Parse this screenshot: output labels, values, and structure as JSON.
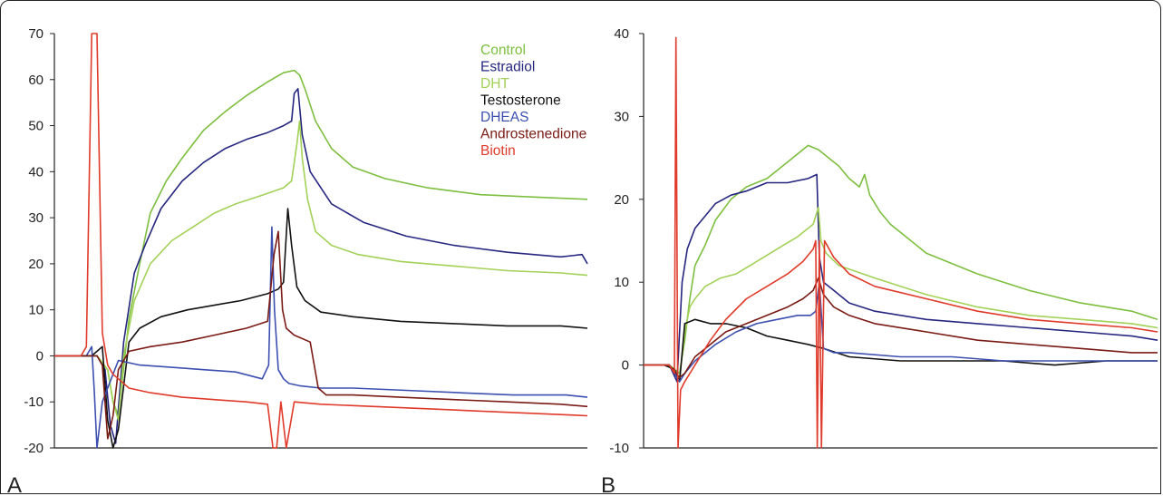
{
  "chart_data": [
    {
      "type": "line",
      "panel_label": "A",
      "ylim": [
        -20,
        70
      ],
      "yticks": [
        70,
        60,
        50,
        40,
        30,
        20,
        10,
        0,
        -10,
        -20
      ],
      "xlim": [
        0,
        100
      ],
      "grid": false,
      "legend_placement": "top-right",
      "legend": [
        "Control",
        "Estradiol",
        "DHT",
        "Testosterone",
        "DHEAS",
        "Androstenedione",
        "Biotin"
      ],
      "series": [
        {
          "name": "Control",
          "color": "#7dbe3f",
          "x": [
            0,
            8,
            10,
            11,
            12,
            14,
            16,
            18,
            21,
            24,
            28,
            32,
            36,
            40,
            43,
            45,
            46,
            47,
            49,
            52,
            56,
            62,
            70,
            80,
            90,
            100
          ],
          "y": [
            0,
            0,
            -3,
            -10,
            -13,
            8,
            20,
            31,
            38,
            43,
            49,
            53,
            56.5,
            59.5,
            61.5,
            62,
            61,
            58,
            51,
            45,
            41,
            38.5,
            36.5,
            35,
            34.5,
            34
          ]
        },
        {
          "name": "Estradiol",
          "color": "#262680",
          "x": [
            0,
            8,
            9.5,
            10.5,
            11.5,
            13,
            15,
            17,
            20,
            24,
            28,
            32,
            36,
            40,
            43,
            44.5,
            45,
            45.7,
            46.5,
            48,
            52,
            58,
            66,
            75,
            85,
            95,
            99,
            100
          ],
          "y": [
            0,
            0,
            -3,
            -15,
            -19,
            3,
            18,
            24,
            32,
            38,
            42,
            45,
            47,
            48.5,
            50,
            51,
            57,
            58,
            48,
            40,
            33,
            29,
            26,
            24,
            22.5,
            21.5,
            22,
            20
          ]
        },
        {
          "name": "DHT",
          "color": "#a3d157",
          "x": [
            0,
            8,
            10,
            11,
            12,
            13,
            15,
            18,
            22,
            26,
            30,
            34,
            38,
            43,
            44.5,
            45.5,
            46,
            46.5,
            47.5,
            49,
            52,
            57,
            65,
            75,
            85,
            95,
            100
          ],
          "y": [
            0,
            0,
            -3,
            -10,
            -14,
            0,
            12,
            20,
            25,
            28,
            31,
            33,
            34.5,
            36.5,
            38,
            46,
            51,
            43,
            34,
            27,
            24,
            22,
            20.5,
            19.5,
            18.5,
            18,
            17.5
          ]
        },
        {
          "name": "Testosterone",
          "color": "#111111",
          "x": [
            0,
            7,
            9,
            10,
            11,
            12,
            14,
            16,
            20,
            25,
            30,
            35,
            40,
            42,
            43,
            43.8,
            44.5,
            45.5,
            47,
            50,
            56,
            65,
            75,
            85,
            95,
            100
          ],
          "y": [
            0,
            0,
            2,
            -14,
            -20,
            -16,
            3,
            6,
            8.5,
            10,
            11,
            12,
            13.5,
            14.5,
            16,
            32,
            24,
            15,
            12,
            9.5,
            8.5,
            7.5,
            7,
            6.5,
            6.5,
            6
          ]
        },
        {
          "name": "DHEAS",
          "color": "#3c4fb0",
          "x": [
            0,
            6,
            7,
            7.5,
            8,
            9,
            12,
            16,
            22,
            28,
            34,
            39,
            40.2,
            40.8,
            41.3,
            42,
            43,
            44,
            46,
            50,
            56,
            66,
            76,
            86,
            96,
            100
          ],
          "y": [
            0,
            0,
            2,
            -8,
            -20,
            -10,
            -1,
            -2,
            -2.5,
            -3,
            -3.5,
            -5,
            -2,
            28,
            10,
            -3,
            -5,
            -6,
            -6.5,
            -7,
            -7,
            -7.5,
            -8,
            -8.5,
            -8.5,
            -9
          ]
        },
        {
          "name": "Androstenedione",
          "color": "#7a1a14",
          "x": [
            0,
            8,
            9,
            10,
            11,
            12,
            14,
            18,
            24,
            30,
            36,
            40,
            41.2,
            42,
            42.8,
            43.5,
            45,
            48,
            49.5,
            51,
            56,
            65,
            75,
            85,
            95,
            100
          ],
          "y": [
            0,
            0,
            -2,
            -18,
            -13,
            -3,
            1,
            2,
            3,
            4.5,
            6,
            7.5,
            22,
            27,
            10,
            6,
            4.5,
            3,
            -7,
            -8.5,
            -8.5,
            -9,
            -9.5,
            -10,
            -10.5,
            -11
          ]
        },
        {
          "name": "Biotin",
          "color": "#e03a2a",
          "x": [
            0,
            5,
            6,
            7,
            8,
            9,
            10,
            11,
            12,
            14,
            18,
            24,
            30,
            36,
            40,
            41,
            41.7,
            42.5,
            43.5,
            45,
            50,
            60,
            70,
            80,
            90,
            100
          ],
          "y": [
            0,
            0,
            2,
            70,
            70,
            5,
            -2,
            -4,
            -5,
            -7,
            -8,
            -9,
            -9.5,
            -10,
            -10.5,
            -20,
            -20,
            -10,
            -20,
            -10,
            -10.5,
            -11,
            -11.5,
            -12,
            -12.5,
            -13
          ]
        }
      ]
    },
    {
      "type": "line",
      "panel_label": "B",
      "ylim": [
        -10,
        40
      ],
      "yticks": [
        40,
        30,
        20,
        10,
        0,
        -10
      ],
      "xlim": [
        0,
        100
      ],
      "grid": false,
      "series": [
        {
          "name": "Control",
          "color": "#7dbe3f",
          "x": [
            0,
            5,
            7,
            8,
            9,
            10,
            12,
            14,
            17,
            20,
            24,
            28,
            32,
            34,
            36,
            38,
            40,
            42,
            43,
            44,
            46,
            48,
            55,
            65,
            75,
            85,
            95,
            100
          ],
          "y": [
            0,
            0,
            -1,
            3,
            8,
            12,
            14.5,
            17.5,
            20,
            21.5,
            22.5,
            24.5,
            26.5,
            26,
            25,
            24,
            22.5,
            21.5,
            23,
            20.5,
            18.5,
            17,
            13.5,
            11,
            9,
            7.5,
            6.5,
            5.5
          ]
        },
        {
          "name": "Estradiol",
          "color": "#262680",
          "x": [
            0,
            5,
            6.5,
            7.5,
            8.5,
            10,
            12,
            14,
            17,
            20,
            24,
            28,
            32,
            33.7,
            34.2,
            35,
            37,
            40,
            45,
            55,
            65,
            75,
            85,
            95,
            100
          ],
          "y": [
            0,
            0,
            -2,
            10,
            14,
            16.5,
            18,
            19.5,
            20.5,
            21,
            22,
            22,
            22.5,
            23,
            13,
            10,
            9,
            7.5,
            6.5,
            5.5,
            5,
            4.5,
            4,
            3.5,
            3
          ]
        },
        {
          "name": "DHT",
          "color": "#a3d157",
          "x": [
            0,
            5,
            7,
            8,
            9,
            10,
            12,
            15,
            18,
            22,
            26,
            30,
            33,
            34,
            34.5,
            35.5,
            38,
            45,
            55,
            65,
            75,
            85,
            95,
            100
          ],
          "y": [
            0,
            0,
            -1.5,
            4,
            7,
            8,
            9.5,
            10.5,
            11,
            12.5,
            14,
            15.5,
            17,
            19,
            15,
            13.5,
            12,
            10.5,
            8.5,
            7,
            6,
            5.5,
            5,
            4.5
          ]
        },
        {
          "name": "Testosterone",
          "color": "#111111",
          "x": [
            0,
            4,
            6,
            7,
            8,
            10,
            13,
            16,
            20,
            24,
            28,
            32,
            35,
            40,
            50,
            60,
            70,
            80,
            90,
            100
          ],
          "y": [
            0,
            0,
            -0.5,
            -2,
            5,
            5.5,
            5,
            5,
            4.5,
            3.5,
            3,
            2.5,
            2,
            1,
            0.5,
            0.5,
            0.5,
            0,
            0.5,
            0.5
          ]
        },
        {
          "name": "DHEAS",
          "color": "#3c4fb0",
          "x": [
            0,
            5,
            7,
            8,
            10,
            14,
            18,
            22,
            26,
            30,
            32.5,
            33.5,
            34.2,
            35,
            37,
            40,
            50,
            60,
            70,
            80,
            90,
            100
          ],
          "y": [
            0,
            0,
            -2,
            -1,
            0.5,
            2.5,
            4,
            5,
            5.5,
            6,
            6,
            6.5,
            10,
            2,
            1.5,
            1.5,
            1,
            1,
            0.5,
            0.5,
            0.5,
            0.5
          ]
        },
        {
          "name": "Androstenedione",
          "color": "#7a1a14",
          "x": [
            0,
            5,
            7,
            8,
            10,
            13,
            16,
            20,
            24,
            28,
            31,
            33,
            34,
            35,
            37,
            40,
            45,
            55,
            65,
            75,
            85,
            95,
            100
          ],
          "y": [
            0,
            0,
            -1.5,
            -1,
            1,
            2.5,
            4,
            5,
            6,
            7,
            8,
            9,
            10.5,
            8.5,
            7,
            6,
            5,
            4,
            3,
            2.5,
            2,
            1.5,
            1.5
          ]
        },
        {
          "name": "Biotin",
          "color": "#e03a2a",
          "x": [
            0,
            5,
            6,
            6.3,
            6.7,
            7.2,
            8,
            10,
            13,
            16,
            20,
            24,
            28,
            31,
            33,
            33.5,
            33.8,
            34.2,
            34.6,
            35.2,
            37,
            40,
            45,
            55,
            65,
            75,
            85,
            95,
            100
          ],
          "y": [
            0,
            0,
            -1,
            39.5,
            -10,
            -3,
            -2,
            0,
            3,
            5.5,
            8,
            9.5,
            11,
            12.5,
            14,
            15,
            -10,
            15,
            -10,
            15,
            13,
            11,
            9.5,
            8,
            6.5,
            5.5,
            5,
            4.5,
            4
          ]
        }
      ]
    }
  ]
}
